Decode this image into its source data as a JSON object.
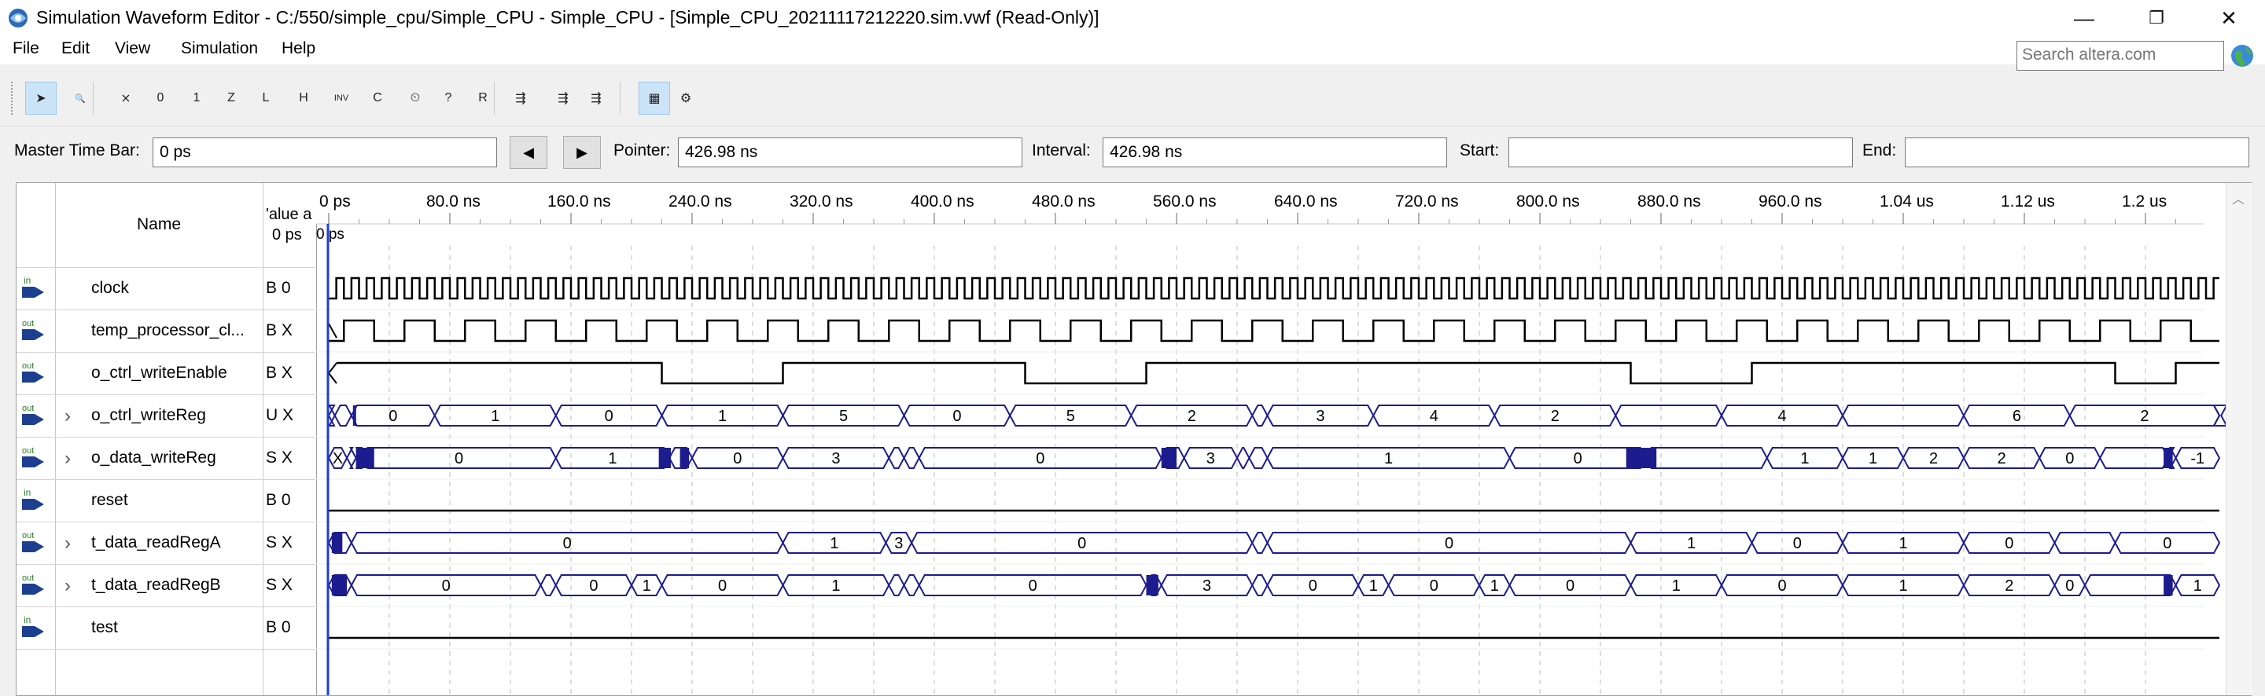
{
  "window": {
    "title": "Simulation Waveform Editor - C:/550/simple_cpu/Simple_CPU - Simple_CPU - [Simple_CPU_20211117212220.sim.vwf (Read-Only)]",
    "minimize": "—",
    "maximize": "❐",
    "close": "✕"
  },
  "menu": [
    "File",
    "Edit",
    "View",
    "Simulation",
    "Help"
  ],
  "search": {
    "placeholder": "Search altera.com"
  },
  "toolbar": [
    {
      "name": "selection-tool-icon",
      "glyph": "➤"
    },
    {
      "name": "zoom-tool-icon",
      "glyph": "🔍"
    },
    {
      "name": "uninitialized-icon",
      "glyph": "⨯"
    },
    {
      "name": "force-low-icon",
      "glyph": "0"
    },
    {
      "name": "force-high-icon",
      "glyph": "1"
    },
    {
      "name": "high-impedance-icon",
      "glyph": "Z"
    },
    {
      "name": "weak-low-icon",
      "glyph": "L"
    },
    {
      "name": "weak-high-icon",
      "glyph": "H"
    },
    {
      "name": "invert-icon",
      "glyph": "INV"
    },
    {
      "name": "count-value-icon",
      "glyph": "C"
    },
    {
      "name": "overwrite-clock-icon",
      "glyph": "⏲"
    },
    {
      "name": "random-values-icon",
      "glyph": "?"
    },
    {
      "name": "arbitrary-value-icon",
      "glyph": "R"
    },
    {
      "name": "run-functional-icon",
      "glyph": "⇶"
    },
    {
      "name": "run-timing-icon",
      "glyph": "⇶"
    },
    {
      "name": "generate-netlist-icon",
      "glyph": "⇶"
    },
    {
      "name": "snap-to-grid-icon",
      "glyph": "▦"
    },
    {
      "name": "settings-grid-icon",
      "glyph": "⚙"
    }
  ],
  "timebar": {
    "master_label": "Master Time Bar:",
    "master_value": "0 ps",
    "prev": "◀",
    "next": "▶",
    "pointer_label": "Pointer:",
    "pointer_value": "426.98 ns",
    "interval_label": "Interval:",
    "interval_value": "426.98 ns",
    "start_label": "Start:",
    "start_value": "",
    "end_label": "End:",
    "end_value": ""
  },
  "table_header": {
    "name": "Name",
    "value_line1": "'alue a",
    "value_line2": "0 ps"
  },
  "time_ticks": [
    "0 ps",
    "80.0 ns",
    "160.0 ns",
    "240.0 ns",
    "320.0 ns",
    "400.0 ns",
    "480.0 ns",
    "560.0 ns",
    "640.0 ns",
    "720.0 ns",
    "800.0 ns",
    "880.0 ns",
    "960.0 ns",
    "1.04 us",
    "1.12 us",
    "1.2 us"
  ],
  "cursor_label": "0 ps",
  "signals": [
    {
      "dir": "in",
      "name": "clock",
      "value": "B 0",
      "expandable": false
    },
    {
      "dir": "out",
      "name": "temp_processor_cl...",
      "value": "B X",
      "expandable": false
    },
    {
      "dir": "out",
      "name": "o_ctrl_writeEnable",
      "value": "B X",
      "expandable": false
    },
    {
      "dir": "out",
      "name": "o_ctrl_writeReg",
      "value": "U X",
      "expandable": true,
      "labels": [
        "X",
        "0",
        "1",
        "0",
        "1",
        "5",
        "0",
        "5",
        "2",
        "3",
        "4",
        "2",
        "4",
        "6",
        "2"
      ]
    },
    {
      "dir": "out",
      "name": "o_data_writeReg",
      "value": "S X",
      "expandable": true,
      "labels": [
        "X",
        "0",
        "1",
        "0",
        "3",
        "0",
        "3",
        "3",
        "1",
        "0",
        "0",
        "1",
        "2",
        "0",
        "-1"
      ]
    },
    {
      "dir": "in",
      "name": "reset",
      "value": "B 0",
      "expandable": false
    },
    {
      "dir": "out",
      "name": "t_data_readRegA",
      "value": "S X",
      "expandable": true,
      "labels": [
        "0",
        "1",
        "3",
        "0",
        "3",
        "0",
        "1",
        "0",
        "1",
        "0"
      ]
    },
    {
      "dir": "out",
      "name": "t_data_readRegB",
      "value": "S X",
      "expandable": true,
      "labels": [
        "0",
        "0",
        "1",
        "0",
        "1",
        "3",
        "0",
        "3",
        "0",
        "1",
        "0",
        "1",
        "0",
        "1",
        "0",
        "1",
        "2",
        "0",
        "1"
      ]
    },
    {
      "dir": "in",
      "name": "test",
      "value": "B 0",
      "expandable": false
    }
  ],
  "colors": {
    "bus": "#1c1c8f",
    "signal": "#000000",
    "cursor": "#1f3fd0",
    "selected": "#cce4f7"
  }
}
